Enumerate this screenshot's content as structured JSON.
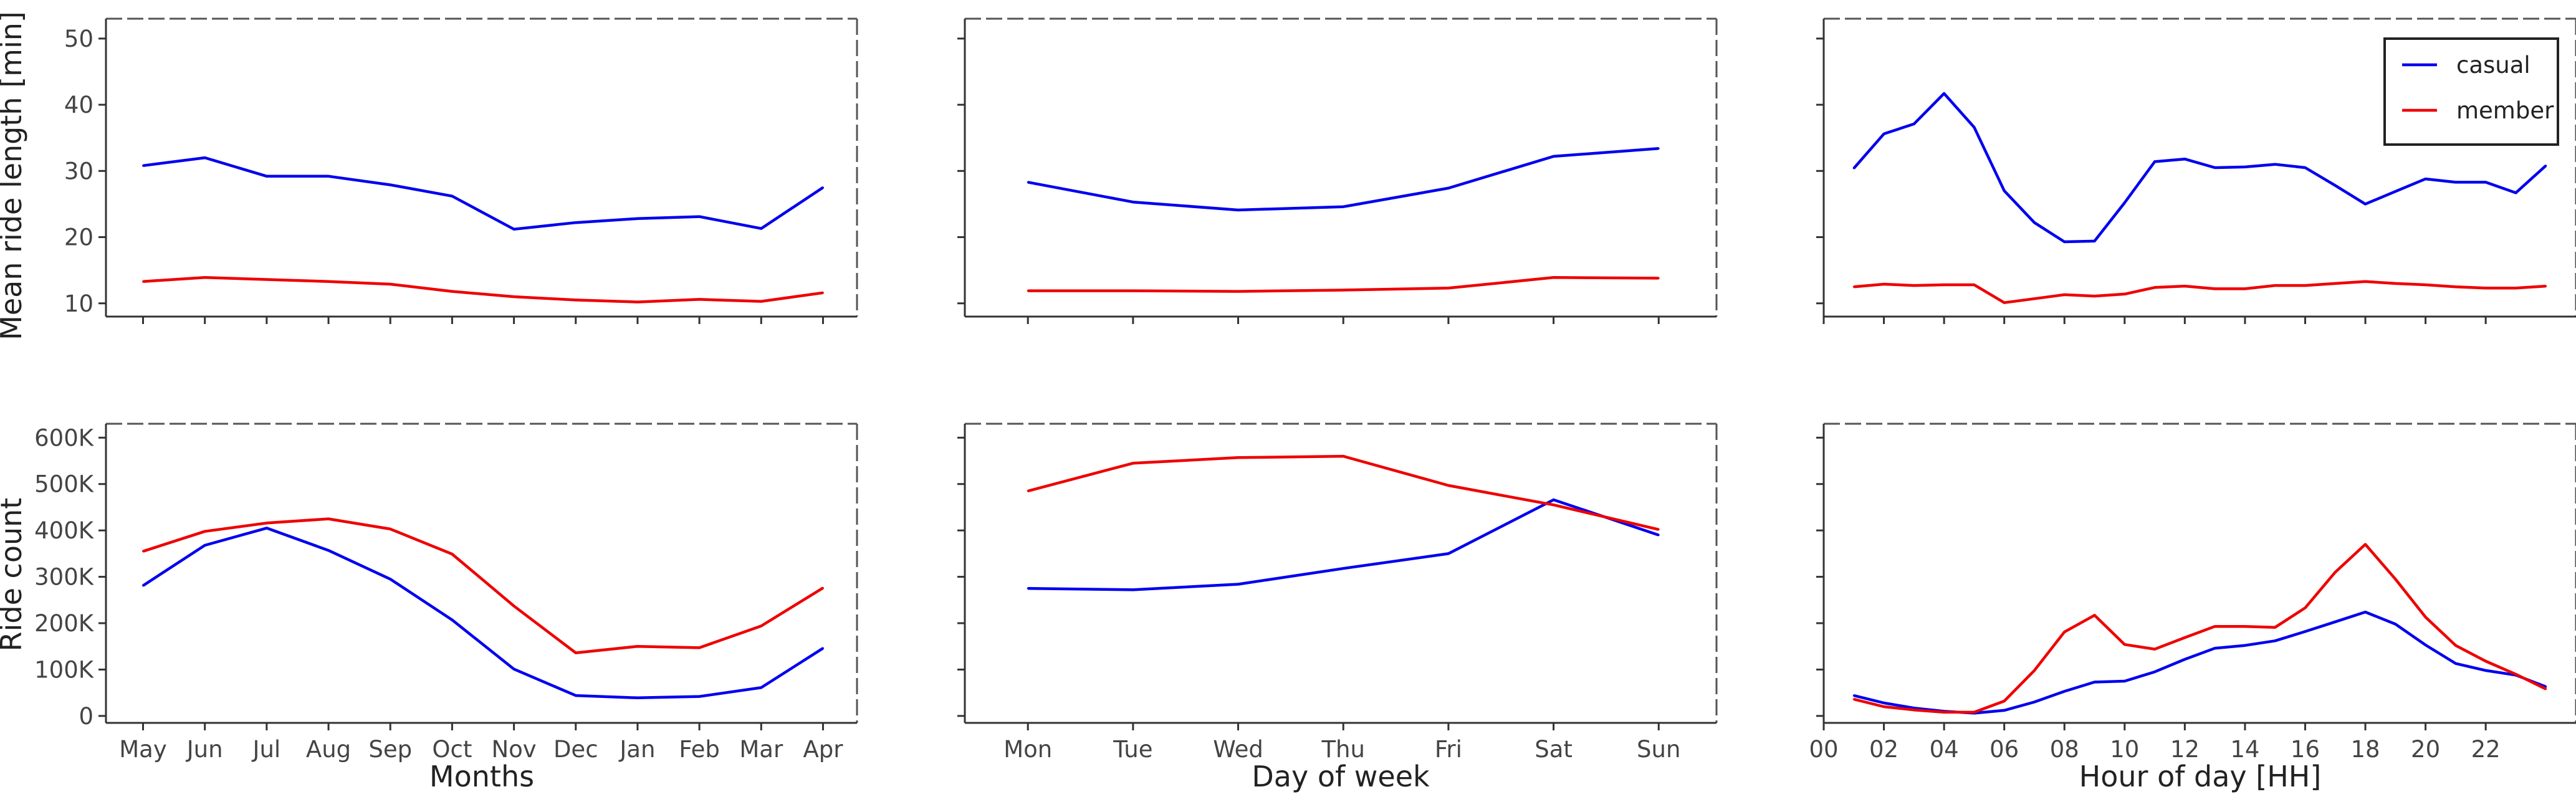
{
  "chart_data": [
    {
      "type": "line",
      "ylabel": "Mean ride length [min]",
      "xlabel": "",
      "categories": [
        "May",
        "Jun",
        "Jul",
        "Aug",
        "Sep",
        "Oct",
        "Nov",
        "Dec",
        "Jan",
        "Feb",
        "Mar",
        "Apr"
      ],
      "ylim": [
        8,
        53
      ],
      "yticks": [
        10,
        20,
        30,
        40,
        50
      ],
      "ytick_labels": [
        "10",
        "20",
        "30",
        "40",
        "50"
      ],
      "show_xtick_labels": false,
      "series": [
        {
          "name": "casual",
          "color": "#0000ee",
          "values": [
            30.8,
            32.0,
            29.2,
            29.2,
            27.9,
            26.2,
            21.2,
            22.2,
            22.8,
            23.1,
            21.3,
            27.5
          ]
        },
        {
          "name": "member",
          "color": "#ee0000",
          "values": [
            13.3,
            13.9,
            13.6,
            13.3,
            12.9,
            11.8,
            11.0,
            10.5,
            10.2,
            10.6,
            10.3,
            11.6
          ]
        }
      ]
    },
    {
      "type": "line",
      "ylabel": "",
      "xlabel": "",
      "categories": [
        "Mon",
        "Tue",
        "Wed",
        "Thu",
        "Fri",
        "Sat",
        "Sun"
      ],
      "ylim": [
        8,
        53
      ],
      "yticks": [
        10,
        20,
        30,
        40,
        50
      ],
      "ytick_labels": [],
      "show_xtick_labels": false,
      "series": [
        {
          "name": "casual",
          "color": "#0000ee",
          "values": [
            28.3,
            25.3,
            24.1,
            24.6,
            27.4,
            32.2,
            33.4
          ]
        },
        {
          "name": "member",
          "color": "#ee0000",
          "values": [
            11.9,
            11.9,
            11.8,
            12.0,
            12.3,
            13.9,
            13.8
          ]
        }
      ]
    },
    {
      "type": "line",
      "ylabel": "",
      "xlabel": "",
      "x": [
        1,
        2,
        3,
        4,
        5,
        6,
        7,
        8,
        9,
        10,
        11,
        12,
        13,
        14,
        15,
        16,
        17,
        18,
        19,
        20,
        21,
        22,
        23,
        24
      ],
      "xlim": [
        0,
        25
      ],
      "xticks": [
        0,
        2,
        4,
        6,
        8,
        10,
        12,
        14,
        16,
        18,
        20,
        22
      ],
      "ylim": [
        8,
        53
      ],
      "yticks": [
        10,
        20,
        30,
        40,
        50
      ],
      "ytick_labels": [],
      "show_xtick_labels": false,
      "legend": {
        "position": "top-right",
        "entries": [
          "casual",
          "member"
        ]
      },
      "series": [
        {
          "name": "casual",
          "color": "#0000ee",
          "values": [
            30.4,
            35.6,
            37.1,
            41.7,
            36.6,
            27.0,
            22.2,
            19.3,
            19.4,
            25.2,
            31.4,
            31.8,
            30.5,
            30.6,
            31.0,
            30.5,
            27.8,
            25.0,
            26.9,
            28.8,
            28.3,
            28.3,
            26.7,
            30.8
          ]
        },
        {
          "name": "member",
          "color": "#ee0000",
          "values": [
            12.5,
            12.9,
            12.7,
            12.8,
            12.8,
            10.1,
            10.7,
            11.3,
            11.1,
            11.4,
            12.4,
            12.6,
            12.2,
            12.2,
            12.7,
            12.7,
            13.0,
            13.3,
            13.0,
            12.8,
            12.5,
            12.3,
            12.3,
            12.6
          ]
        }
      ]
    },
    {
      "type": "line",
      "ylabel": "Ride count",
      "xlabel": "Months",
      "categories": [
        "May",
        "Jun",
        "Jul",
        "Aug",
        "Sep",
        "Oct",
        "Nov",
        "Dec",
        "Jan",
        "Feb",
        "Mar",
        "Apr"
      ],
      "ylim": [
        -15000,
        630000
      ],
      "yticks": [
        0,
        100000,
        200000,
        300000,
        400000,
        500000,
        600000
      ],
      "ytick_labels": [
        "0",
        "100K",
        "200K",
        "300K",
        "400K",
        "500K",
        "600K"
      ],
      "show_xtick_labels": true,
      "series": [
        {
          "name": "casual",
          "color": "#0000ee",
          "values": [
            281000,
            368000,
            405000,
            357000,
            295000,
            207000,
            101000,
            44000,
            39000,
            42000,
            61000,
            146000
          ]
        },
        {
          "name": "member",
          "color": "#ee0000",
          "values": [
            355000,
            398000,
            416000,
            425000,
            403000,
            349000,
            237000,
            136000,
            150000,
            147000,
            194000,
            276000
          ]
        }
      ]
    },
    {
      "type": "line",
      "ylabel": "",
      "xlabel": "Day of week",
      "categories": [
        "Mon",
        "Tue",
        "Wed",
        "Thu",
        "Fri",
        "Sat",
        "Sun"
      ],
      "ylim": [
        -15000,
        630000
      ],
      "yticks": [
        0,
        100000,
        200000,
        300000,
        400000,
        500000,
        600000
      ],
      "ytick_labels": [],
      "show_xtick_labels": true,
      "series": [
        {
          "name": "casual",
          "color": "#0000ee",
          "values": [
            275000,
            272000,
            284000,
            318000,
            350000,
            466000,
            390000
          ]
        },
        {
          "name": "member",
          "color": "#ee0000",
          "values": [
            485000,
            545000,
            557000,
            560000,
            497000,
            455000,
            402000
          ]
        }
      ]
    },
    {
      "type": "line",
      "ylabel": "",
      "xlabel": "Hour of day [HH]",
      "x": [
        1,
        2,
        3,
        4,
        5,
        6,
        7,
        8,
        9,
        10,
        11,
        12,
        13,
        14,
        15,
        16,
        17,
        18,
        19,
        20,
        21,
        22,
        23,
        24
      ],
      "xlim": [
        0,
        25
      ],
      "xticks": [
        0,
        2,
        4,
        6,
        8,
        10,
        12,
        14,
        16,
        18,
        20,
        22
      ],
      "xtick_labels": [
        "00",
        "02",
        "04",
        "06",
        "08",
        "10",
        "12",
        "14",
        "16",
        "18",
        "20",
        "22"
      ],
      "ylim": [
        -15000,
        630000
      ],
      "yticks": [
        0,
        100000,
        200000,
        300000,
        400000,
        500000,
        600000
      ],
      "ytick_labels": [],
      "show_xtick_labels": true,
      "series": [
        {
          "name": "casual",
          "color": "#0000ee",
          "values": [
            44000,
            28000,
            17000,
            10000,
            6000,
            12000,
            30000,
            53000,
            73000,
            75000,
            95000,
            122000,
            146000,
            152000,
            162000,
            182000,
            203000,
            224000,
            198000,
            153000,
            113000,
            98000,
            88000,
            63000
          ]
        },
        {
          "name": "member",
          "color": "#ee0000",
          "values": [
            36000,
            20000,
            13000,
            8000,
            8000,
            32000,
            98000,
            181000,
            217000,
            154000,
            144000,
            169000,
            193000,
            193000,
            191000,
            233000,
            310000,
            370000,
            295000,
            213000,
            152000,
            118000,
            90000,
            58000
          ]
        }
      ]
    }
  ]
}
